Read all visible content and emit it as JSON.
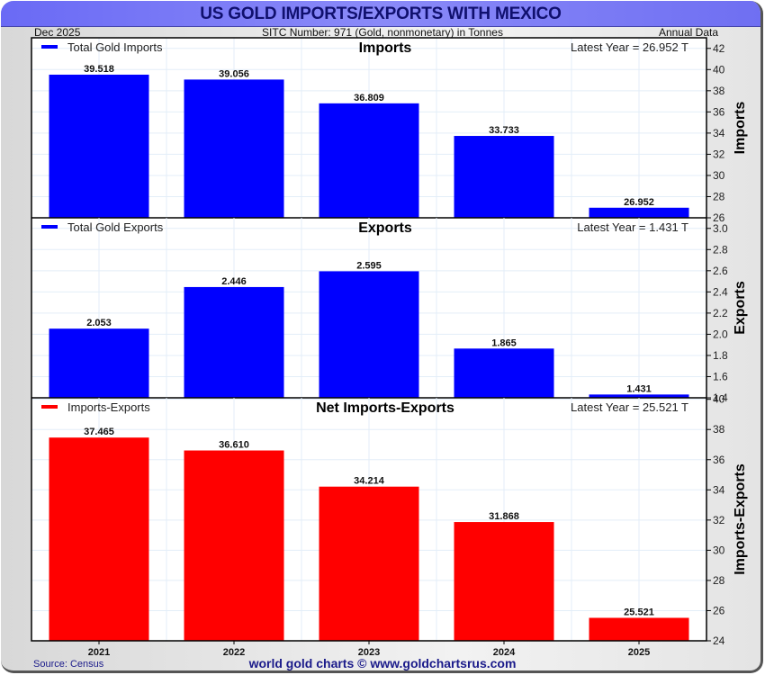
{
  "header": {
    "title": "US GOLD IMPORTS/EXPORTS WITH MEXICO",
    "date": "Dec  2025",
    "subtitle": "SITC Number: 971 (Gold, nonmonetary) in Tonnes",
    "frequency": "Annual Data"
  },
  "footer": {
    "source": "Source: Census",
    "credit": "world gold charts © www.goldchartsrus.com"
  },
  "colors": {
    "imports": "#0000ff",
    "exports": "#0000ff",
    "net": "#ff0000",
    "title_bar": "#7a7af6",
    "title_text": "#10106e"
  },
  "chart_data": [
    {
      "type": "bar",
      "title": "Imports",
      "legend": "Total Gold Imports",
      "legend_position": "top-left",
      "annotation": "Latest Year = 26.952 T",
      "ylabel": "Imports",
      "xlabel": "",
      "categories": [
        "2021",
        "2022",
        "2023",
        "2024",
        "2025"
      ],
      "values": [
        39.518,
        39.056,
        36.809,
        33.733,
        26.952
      ],
      "value_labels": [
        "39.518",
        "39.056",
        "36.809",
        "33.733",
        "26.952"
      ],
      "ylim": [
        26,
        43
      ],
      "yticks": [
        "26",
        "28",
        "30",
        "32",
        "34",
        "36",
        "38",
        "40",
        "42"
      ],
      "ytick_values": [
        26,
        28,
        30,
        32,
        34,
        36,
        38,
        40,
        42
      ],
      "grid": true,
      "color": "#0000ff"
    },
    {
      "type": "bar",
      "title": "Exports",
      "legend": "Total Gold Exports",
      "legend_position": "top-left",
      "annotation": "Latest Year = 1.431 T",
      "ylabel": "Exports",
      "xlabel": "",
      "categories": [
        "2021",
        "2022",
        "2023",
        "2024",
        "2025"
      ],
      "values": [
        2.053,
        2.446,
        2.595,
        1.865,
        1.431
      ],
      "value_labels": [
        "2.053",
        "2.446",
        "2.595",
        "1.865",
        "1.431"
      ],
      "ylim": [
        1.4,
        3.1
      ],
      "yticks": [
        "1.4",
        "1.6",
        "1.8",
        "2.0",
        "2.2",
        "2.4",
        "2.6",
        "2.8",
        "3.0"
      ],
      "ytick_values": [
        1.4,
        1.6,
        1.8,
        2.0,
        2.2,
        2.4,
        2.6,
        2.8,
        3.0
      ],
      "grid": true,
      "color": "#0000ff"
    },
    {
      "type": "bar",
      "title": "Net Imports-Exports",
      "legend": "Imports-Exports",
      "legend_position": "top-left",
      "annotation": "Latest Year = 25.521 T",
      "ylabel": "Imports-Exports",
      "xlabel": "",
      "categories": [
        "2021",
        "2022",
        "2023",
        "2024",
        "2025"
      ],
      "values": [
        37.465,
        36.61,
        34.214,
        31.868,
        25.521
      ],
      "value_labels": [
        "37.465",
        "36.610",
        "34.214",
        "31.868",
        "25.521"
      ],
      "ylim": [
        24,
        40.1
      ],
      "yticks": [
        "24",
        "26",
        "28",
        "30",
        "32",
        "34",
        "36",
        "38",
        "40"
      ],
      "ytick_values": [
        24,
        26,
        28,
        30,
        32,
        34,
        36,
        38,
        40
      ],
      "grid": true,
      "color": "#ff0000"
    }
  ]
}
